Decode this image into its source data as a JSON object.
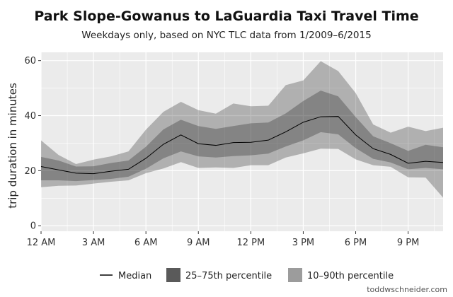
{
  "chart_data": {
    "type": "area",
    "title": "Park Slope-Gowanus to LaGuardia Taxi Travel Time",
    "subtitle": "Weekdays only, based on NYC TLC data from 1/2009–6/2015",
    "xlabel": "",
    "ylabel": "trip duration in minutes",
    "xlim": [
      0,
      23
    ],
    "ylim": [
      -2,
      63
    ],
    "xticks": [
      0,
      3,
      6,
      9,
      12,
      15,
      18,
      21
    ],
    "xtick_labels": [
      "12 AM",
      "3 AM",
      "6 AM",
      "9 AM",
      "12 PM",
      "3 PM",
      "6 PM",
      "9 PM"
    ],
    "yticks": [
      0,
      20,
      40,
      60
    ],
    "ytick_labels": [
      "0",
      "20",
      "40",
      "60"
    ],
    "x": [
      0,
      1,
      2,
      3,
      4,
      5,
      6,
      7,
      8,
      9,
      10,
      11,
      12,
      13,
      14,
      15,
      16,
      17,
      18,
      19,
      20,
      21,
      22,
      23
    ],
    "series": [
      {
        "name": "Median",
        "values": [
          21.5,
          20.3,
          19.1,
          18.9,
          19.8,
          20.5,
          24.5,
          29.6,
          33.0,
          29.8,
          29.2,
          30.2,
          30.3,
          31.1,
          34.1,
          37.6,
          39.6,
          39.7,
          33.0,
          28.0,
          25.9,
          22.7,
          23.4,
          23.0
        ]
      },
      {
        "name": "25–75th percentile",
        "lower": [
          16.5,
          16.5,
          16.2,
          16.6,
          17.0,
          17.8,
          20.7,
          24.5,
          27.0,
          25.2,
          24.8,
          25.3,
          25.6,
          26.2,
          28.8,
          31.0,
          34.0,
          33.2,
          28.2,
          24.3,
          23.0,
          20.5,
          21.0,
          20.5
        ],
        "upper": [
          25.0,
          23.7,
          21.5,
          21.6,
          22.8,
          23.7,
          28.7,
          35.0,
          38.5,
          36.2,
          35.2,
          36.2,
          37.2,
          37.5,
          40.8,
          45.3,
          49.1,
          47.0,
          39.5,
          32.5,
          30.0,
          27.2,
          29.4,
          28.5
        ]
      },
      {
        "name": "10–90th percentile",
        "lower": [
          14.0,
          14.5,
          14.6,
          15.3,
          16.0,
          16.5,
          19.1,
          20.8,
          23.1,
          21.0,
          21.2,
          21.0,
          22.0,
          22.0,
          24.8,
          26.3,
          28.0,
          27.9,
          24.1,
          22.0,
          21.4,
          17.6,
          17.5,
          10.2
        ],
        "upper": [
          31.0,
          25.7,
          22.4,
          24.0,
          25.2,
          27.0,
          34.9,
          41.4,
          45.0,
          42.0,
          40.7,
          44.4,
          43.4,
          43.6,
          51.1,
          52.8,
          59.8,
          56.2,
          48.2,
          36.8,
          33.8,
          36.0,
          34.4,
          35.6
        ]
      }
    ],
    "legend_position": "bottom",
    "grid": true,
    "colors": {
      "panel": "#ebebeb",
      "grid": "#ffffff",
      "band_10_90": "#ababab",
      "band_25_75": "#8c8c8c",
      "median": "#000000"
    }
  },
  "credit": "toddwschneider.com"
}
